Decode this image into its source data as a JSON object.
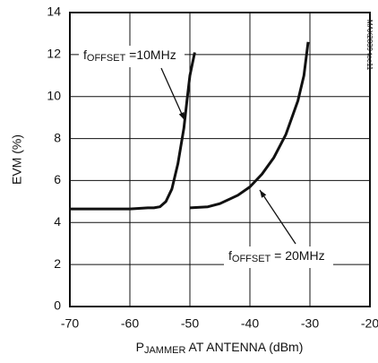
{
  "chart_data": {
    "type": "line",
    "x_label": [
      "P",
      "JAMMER",
      " AT ANTENNA (dBm)"
    ],
    "y_label": "EVM (%)",
    "side_note": "MAX2839 toc11",
    "xlim": [
      -70,
      -20
    ],
    "xticks": [
      -70,
      -60,
      -50,
      -40,
      -30,
      -20
    ],
    "ylim": [
      0,
      14
    ],
    "yticks": [
      0,
      2,
      4,
      6,
      8,
      10,
      12,
      14
    ],
    "grid": true,
    "series": [
      {
        "name": [
          "f",
          "OFFSET",
          " =10MHz"
        ],
        "color": "#111111",
        "x": [
          -70,
          -65,
          -60,
          -57,
          -56,
          -55,
          -54,
          -53,
          -52,
          -51,
          -50.5,
          -50,
          -49.2
        ],
        "values": [
          4.65,
          4.65,
          4.65,
          4.7,
          4.7,
          4.75,
          5.0,
          5.6,
          6.8,
          8.5,
          9.8,
          11,
          12.1
        ]
      },
      {
        "name": [
          "f",
          "OFFSET",
          " = 20MHz"
        ],
        "color": "#111111",
        "x": [
          -50,
          -47,
          -45,
          -42,
          -40,
          -38,
          -36,
          -34,
          -32,
          -31,
          -30.3
        ],
        "values": [
          4.7,
          4.75,
          4.9,
          5.3,
          5.7,
          6.3,
          7.1,
          8.2,
          9.8,
          11,
          12.6
        ]
      }
    ]
  }
}
